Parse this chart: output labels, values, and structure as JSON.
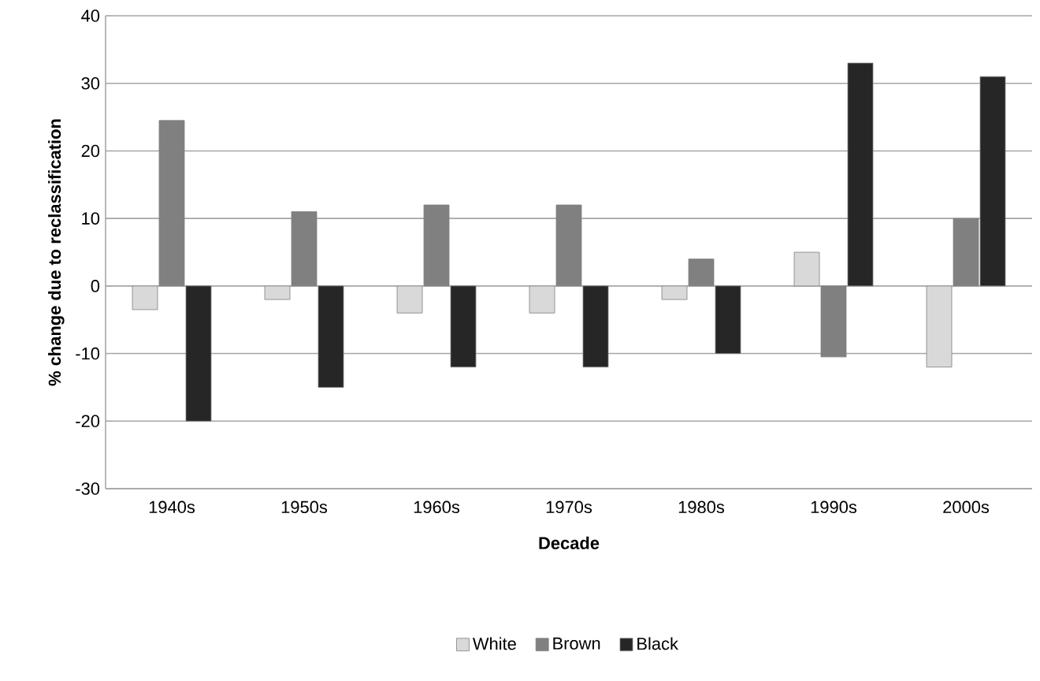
{
  "chart_data": {
    "type": "bar",
    "xlabel": "Decade",
    "ylabel": "% change due to reclassification",
    "categories": [
      "1940s",
      "1950s",
      "1960s",
      "1970s",
      "1980s",
      "1990s",
      "2000s"
    ],
    "series": [
      {
        "name": "White",
        "color": "#d9d9d9",
        "values": [
          -3.5,
          -2,
          -4,
          -4,
          -2,
          5,
          -12
        ]
      },
      {
        "name": "Brown",
        "color": "#808080",
        "values": [
          24.5,
          11,
          12,
          12,
          4,
          -10.5,
          10
        ]
      },
      {
        "name": "Black",
        "color": "#262626",
        "values": [
          -20,
          -15,
          -12,
          -12,
          -10,
          33,
          31
        ]
      }
    ],
    "ylim": [
      -30,
      40
    ],
    "yticks": [
      -30,
      -20,
      -10,
      0,
      10,
      20,
      30,
      40
    ],
    "grid": "y",
    "legend": "bottom"
  }
}
